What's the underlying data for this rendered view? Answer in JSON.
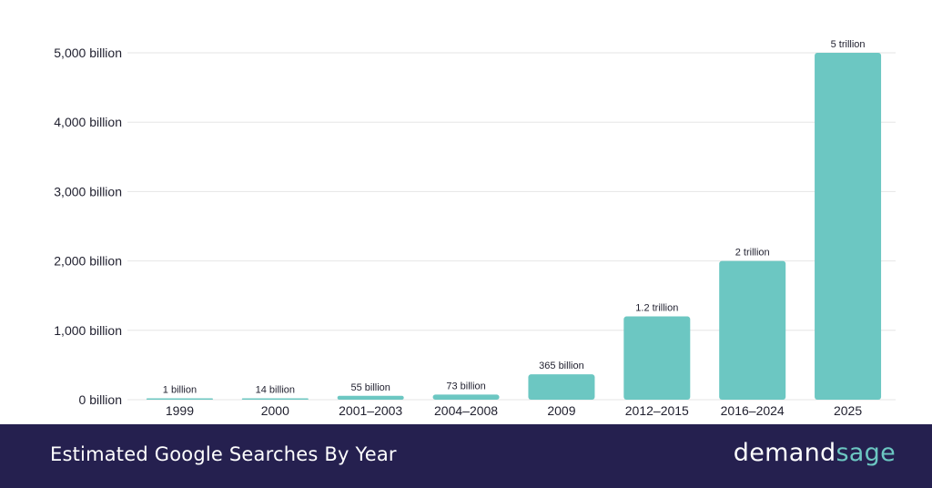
{
  "footer": {
    "title": "Estimated Google Searches By Year",
    "brand_part1": "demand",
    "brand_part2": "sage"
  },
  "colors": {
    "bar": "#6cc7c2",
    "footer_bg": "#25204f",
    "brand_accent": "#6cc7c2",
    "grid": "#e6e6e6",
    "text": "#1f1f2e"
  },
  "chart_data": {
    "type": "bar",
    "title": "",
    "xlabel": "",
    "ylabel": "",
    "categories": [
      "1999",
      "2000",
      "2001–2003",
      "2004–2008",
      "2009",
      "2012–2015",
      "2016–2024",
      "2025"
    ],
    "values": [
      1,
      14,
      55,
      73,
      365,
      1200,
      2000,
      5000
    ],
    "data_labels": [
      "1 billion",
      "14 billion",
      "55 billion",
      "73 billion",
      "365 billion",
      "1.2 trillion",
      "2 trillion",
      "5 trillion"
    ],
    "ylim": [
      0,
      5000
    ],
    "yticks": [
      0,
      1000,
      2000,
      3000,
      4000,
      5000
    ],
    "ytick_labels": [
      "0 billion",
      "1,000 billion",
      "2,000 billion",
      "3,000 billion",
      "4,000 billion",
      "5,000 billion"
    ],
    "grid": true,
    "legend": "none"
  }
}
